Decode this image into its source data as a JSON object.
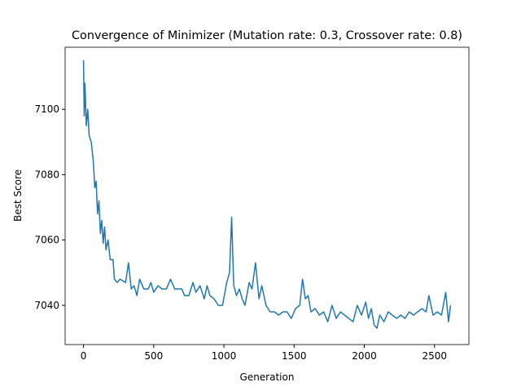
{
  "chart_data": {
    "type": "line",
    "title": "Convergence of Minimizer (Mutation rate: 0.3, Crossover rate: 0.8)",
    "x_label": "Generation",
    "y_label": "Best Score",
    "color": "#1f77b4",
    "grid": false,
    "xlim": [
      -131,
      2745
    ],
    "ylim": [
      7028,
      7119
    ],
    "xticks": [
      0,
      500,
      1000,
      1500,
      2000,
      2500
    ],
    "yticks": [
      7040,
      7060,
      7080,
      7100
    ],
    "x": [
      0,
      5,
      10,
      20,
      30,
      40,
      55,
      70,
      80,
      90,
      100,
      110,
      120,
      130,
      140,
      150,
      160,
      175,
      190,
      210,
      220,
      240,
      260,
      300,
      320,
      340,
      360,
      380,
      400,
      430,
      460,
      480,
      500,
      530,
      560,
      590,
      620,
      650,
      680,
      700,
      720,
      750,
      780,
      800,
      830,
      860,
      880,
      900,
      930,
      960,
      990,
      1020,
      1040,
      1055,
      1070,
      1090,
      1110,
      1130,
      1150,
      1180,
      1200,
      1225,
      1250,
      1270,
      1300,
      1330,
      1360,
      1390,
      1420,
      1450,
      1480,
      1510,
      1540,
      1560,
      1580,
      1600,
      1620,
      1650,
      1680,
      1710,
      1740,
      1770,
      1800,
      1830,
      1860,
      1890,
      1920,
      1950,
      1980,
      2010,
      2030,
      2050,
      2070,
      2090,
      2110,
      2140,
      2170,
      2200,
      2230,
      2260,
      2290,
      2320,
      2350,
      2380,
      2410,
      2440,
      2460,
      2490,
      2520,
      2550,
      2580,
      2600,
      2614
    ],
    "values": [
      7115,
      7098,
      7108,
      7095,
      7100,
      7092,
      7090,
      7084,
      7076,
      7078,
      7068,
      7072,
      7062,
      7066,
      7059,
      7064,
      7057,
      7060,
      7054,
      7054,
      7048,
      7047,
      7048,
      7047,
      7053,
      7045,
      7046,
      7043,
      7048,
      7045,
      7045,
      7047,
      7044,
      7046,
      7045,
      7045,
      7048,
      7045,
      7045,
      7045,
      7043,
      7043,
      7047,
      7044,
      7046,
      7042,
      7046,
      7043,
      7042,
      7040,
      7040,
      7047,
      7050,
      7067,
      7046,
      7043,
      7045,
      7042,
      7040,
      7047,
      7045,
      7053,
      7042,
      7046,
      7040,
      7038,
      7038,
      7037,
      7038,
      7038,
      7036,
      7039,
      7040,
      7048,
      7042,
      7043,
      7038,
      7039,
      7037,
      7038,
      7035,
      7040,
      7036,
      7038,
      7037,
      7036,
      7035,
      7040,
      7037,
      7041,
      7036,
      7039,
      7034,
      7033,
      7037,
      7035,
      7038,
      7037,
      7036,
      7037,
      7036,
      7038,
      7037,
      7038,
      7039,
      7038,
      7043,
      7037,
      7038,
      7037,
      7044,
      7035,
      7040
    ]
  }
}
